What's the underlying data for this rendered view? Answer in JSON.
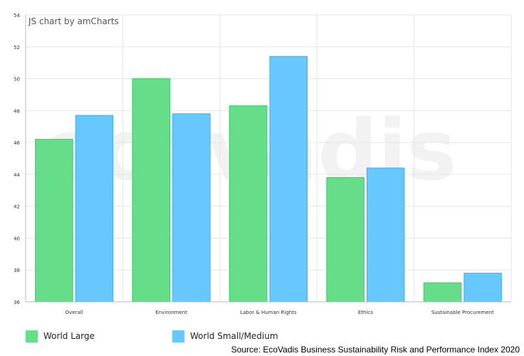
{
  "credit": "JS chart by amCharts",
  "watermark": "ecovadis",
  "source": "Source: EcoVadis Business Sustainability Risk and Performance Index 2020",
  "colors": {
    "world_large": "#66dd88",
    "world_large_border": "#33cc66",
    "world_small_medium": "#66c8fe",
    "world_small_medium_border": "#3aaeee",
    "grid": "#e6e6e6",
    "axis_text": "#333333"
  },
  "chart_data": {
    "type": "bar",
    "title": "",
    "xlabel": "",
    "ylabel": "",
    "categories": [
      "Overall",
      "Environment",
      "Labor & Human Rights",
      "Ethics",
      "Sustainable Procurement"
    ],
    "series": [
      {
        "name": "World Large",
        "values": [
          46.2,
          50.0,
          48.3,
          43.8,
          37.2
        ]
      },
      {
        "name": "World Small/Medium",
        "values": [
          47.7,
          47.8,
          51.4,
          44.4,
          37.8
        ]
      }
    ],
    "ylim": [
      36,
      54
    ],
    "yticks": [
      36,
      38,
      40,
      42,
      44,
      46,
      48,
      50,
      52,
      54
    ],
    "grid": true,
    "legend": "bottom-left"
  }
}
